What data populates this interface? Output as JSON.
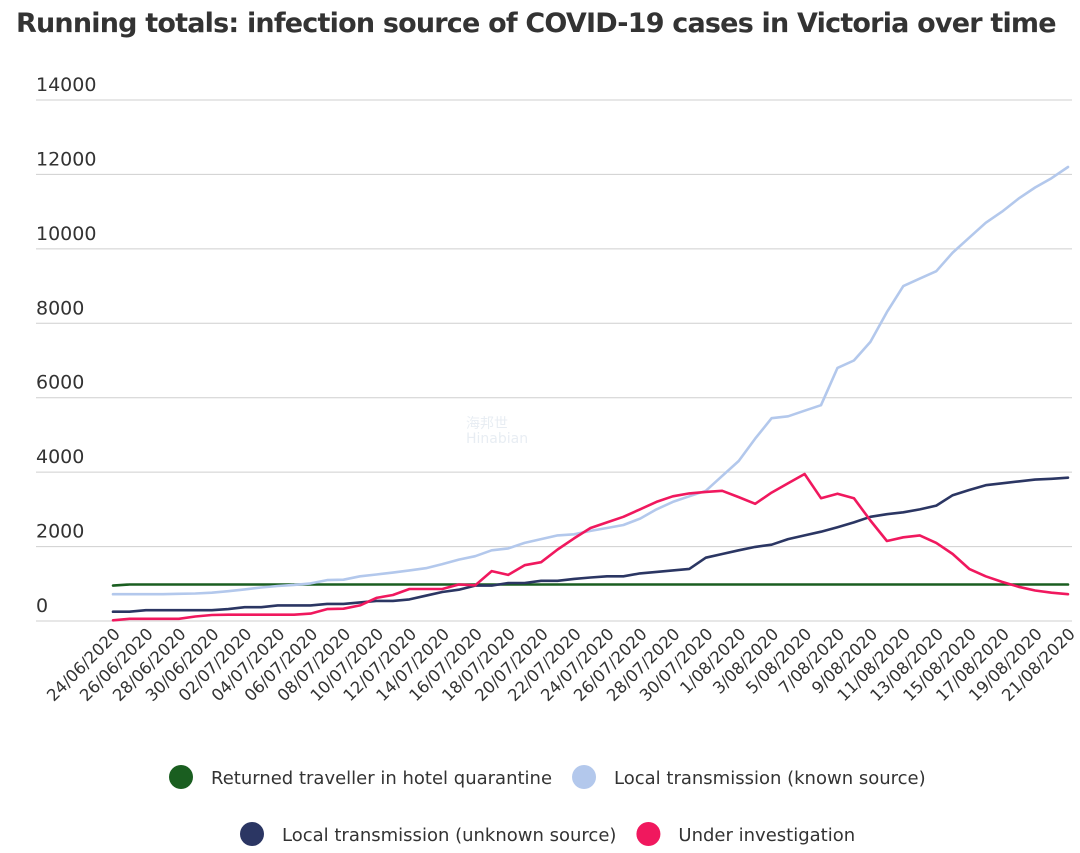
{
  "chart_data": {
    "type": "line",
    "title": "Running totals: infection source of COVID-19 cases in Victoria over time",
    "xlabel": "",
    "ylabel": "",
    "ylim": [
      0,
      14000
    ],
    "yticks": [
      0,
      2000,
      4000,
      6000,
      8000,
      10000,
      12000,
      14000
    ],
    "x": [
      "24/06/2020",
      "25/06/2020",
      "26/06/2020",
      "27/06/2020",
      "28/06/2020",
      "29/06/2020",
      "30/06/2020",
      "01/07/2020",
      "02/07/2020",
      "03/07/2020",
      "04/07/2020",
      "05/07/2020",
      "06/07/2020",
      "07/07/2020",
      "08/07/2020",
      "09/07/2020",
      "10/07/2020",
      "11/07/2020",
      "12/07/2020",
      "13/07/2020",
      "14/07/2020",
      "15/07/2020",
      "16/07/2020",
      "17/07/2020",
      "18/07/2020",
      "19/07/2020",
      "20/07/2020",
      "21/07/2020",
      "22/07/2020",
      "23/07/2020",
      "24/07/2020",
      "25/07/2020",
      "26/07/2020",
      "27/07/2020",
      "28/07/2020",
      "29/07/2020",
      "30/07/2020",
      "31/07/2020",
      "1/08/2020",
      "2/08/2020",
      "3/08/2020",
      "4/08/2020",
      "5/08/2020",
      "6/08/2020",
      "7/08/2020",
      "8/08/2020",
      "9/08/2020",
      "10/08/2020",
      "11/08/2020",
      "12/08/2020",
      "13/08/2020",
      "14/08/2020",
      "15/08/2020",
      "16/08/2020",
      "17/08/2020",
      "18/08/2020",
      "19/08/2020",
      "20/08/2020",
      "21/08/2020"
    ],
    "x_tick_labels": [
      "24/06/2020",
      "26/06/2020",
      "28/06/2020",
      "30/06/2020",
      "02/07/2020",
      "04/07/2020",
      "06/07/2020",
      "08/07/2020",
      "10/07/2020",
      "12/07/2020",
      "14/07/2020",
      "16/07/2020",
      "18/07/2020",
      "20/07/2020",
      "22/07/2020",
      "24/07/2020",
      "26/07/2020",
      "28/07/2020",
      "30/07/2020",
      "1/08/2020",
      "3/08/2020",
      "5/08/2020",
      "7/08/2020",
      "9/08/2020",
      "11/08/2020",
      "13/08/2020",
      "15/08/2020",
      "17/08/2020",
      "19/08/2020",
      "21/08/2020"
    ],
    "legend_position": "bottom",
    "series": [
      {
        "name": "Returned traveller in hotel quarantine",
        "color": "#1a5e20",
        "values": [
          950,
          980,
          980,
          980,
          980,
          980,
          980,
          980,
          980,
          980,
          980,
          980,
          980,
          980,
          980,
          980,
          980,
          980,
          980,
          980,
          980,
          980,
          980,
          980,
          980,
          980,
          980,
          980,
          980,
          980,
          980,
          980,
          980,
          980,
          980,
          980,
          980,
          980,
          980,
          980,
          980,
          980,
          980,
          980,
          980,
          980,
          980,
          980,
          980,
          980,
          980,
          980,
          980,
          980,
          980,
          980,
          980,
          980,
          980
        ]
      },
      {
        "name": "Local transmission (known source)",
        "color": "#b3c8ec",
        "values": [
          720,
          720,
          720,
          720,
          730,
          740,
          760,
          800,
          850,
          900,
          940,
          970,
          1010,
          1100,
          1110,
          1200,
          1250,
          1300,
          1360,
          1420,
          1530,
          1650,
          1740,
          1900,
          1950,
          2100,
          2200,
          2300,
          2330,
          2420,
          2500,
          2580,
          2750,
          3000,
          3200,
          3350,
          3500,
          3900,
          4300,
          4900,
          5450,
          5500,
          5650,
          5800,
          6800,
          7000,
          7500,
          8300,
          9000,
          9200,
          9400,
          9900,
          10300,
          10700,
          11000,
          11350,
          11650,
          11900,
          12200
        ]
      },
      {
        "name": "Local transmission (unknown source)",
        "color": "#2b3663",
        "values": [
          250,
          250,
          290,
          290,
          290,
          290,
          290,
          320,
          370,
          370,
          420,
          420,
          420,
          460,
          460,
          500,
          540,
          540,
          580,
          680,
          780,
          840,
          950,
          950,
          1020,
          1020,
          1080,
          1080,
          1130,
          1170,
          1200,
          1200,
          1280,
          1320,
          1360,
          1400,
          1700,
          1800,
          1900,
          1990,
          2050,
          2200,
          2300,
          2400,
          2520,
          2650,
          2800,
          2870,
          2920,
          3000,
          3100,
          3380,
          3520,
          3650,
          3700,
          3750,
          3800,
          3820,
          3850
        ]
      },
      {
        "name": "Under investigation",
        "color": "#f0185e",
        "values": [
          20,
          60,
          60,
          60,
          60,
          120,
          160,
          170,
          170,
          170,
          170,
          170,
          200,
          320,
          330,
          420,
          620,
          700,
          860,
          860,
          860,
          980,
          960,
          1340,
          1240,
          1500,
          1580,
          1920,
          2220,
          2500,
          2650,
          2800,
          3000,
          3200,
          3350,
          3430,
          3470,
          3500,
          3330,
          3150,
          3450,
          3700,
          3950,
          3300,
          3420,
          3300,
          2700,
          2150,
          2250,
          2300,
          2100,
          1800,
          1400,
          1200,
          1050,
          920,
          820,
          760,
          720
        ]
      }
    ]
  },
  "watermark": {
    "line1": "海邦世",
    "line2": "Hinabian"
  }
}
